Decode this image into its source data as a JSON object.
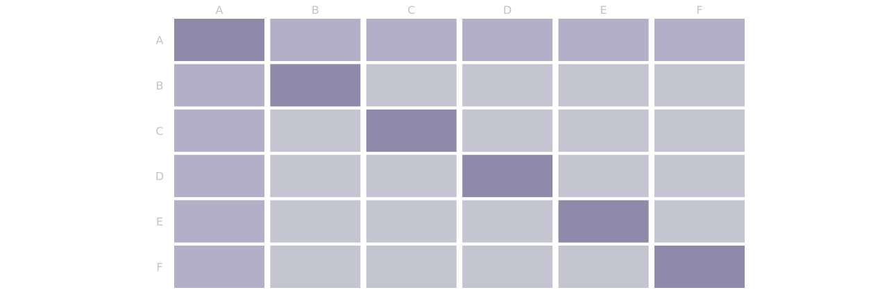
{
  "chart_data": {
    "type": "heatmap",
    "title": "",
    "xlabel": "",
    "ylabel": "",
    "x_categories": [
      "A",
      "B",
      "C",
      "D",
      "E",
      "F"
    ],
    "y_categories": [
      "A",
      "B",
      "C",
      "D",
      "E",
      "F"
    ],
    "x_axis_position": "top",
    "y_axis_position": "left",
    "legend": "none",
    "grid": false,
    "values": [
      [
        1.0,
        0.5,
        0.5,
        0.5,
        0.5,
        0.5
      ],
      [
        0.5,
        1.0,
        0.0,
        0.0,
        0.0,
        0.0
      ],
      [
        0.5,
        0.0,
        1.0,
        0.0,
        0.0,
        0.0
      ],
      [
        0.5,
        0.0,
        0.0,
        1.0,
        0.0,
        0.0
      ],
      [
        0.5,
        0.0,
        0.0,
        0.0,
        1.0,
        0.0
      ],
      [
        0.5,
        0.0,
        0.0,
        0.0,
        0.0,
        1.0
      ]
    ],
    "colors": {
      "low": "#c5c5d1",
      "mid": "#b3afc8",
      "high": "#8f8aaa",
      "tick_label": "#c4c4c4"
    }
  }
}
